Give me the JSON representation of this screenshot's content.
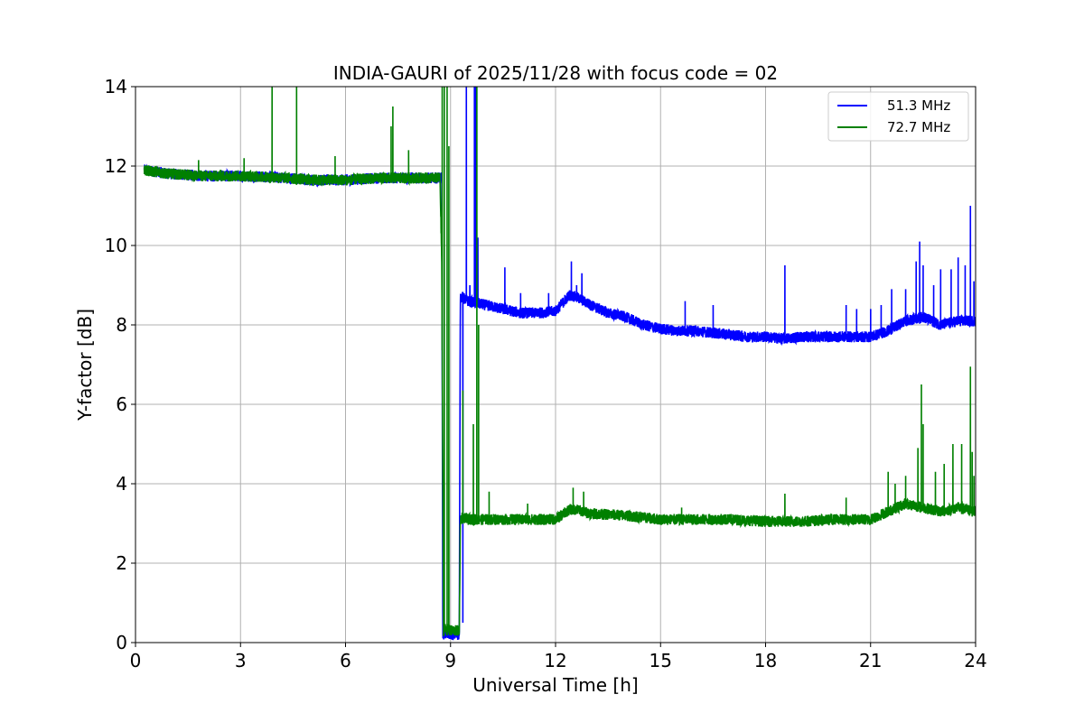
{
  "chart_data": {
    "type": "line",
    "title": "INDIA-GAURI of 2025/11/28 with focus code = 02",
    "xlabel": "Universal Time [h]",
    "ylabel": "Y-factor [dB]",
    "xlim": [
      0,
      24
    ],
    "ylim": [
      0,
      14
    ],
    "xticks": [
      0,
      3,
      6,
      9,
      12,
      15,
      18,
      21,
      24
    ],
    "xtick_labels": [
      "0",
      "3",
      "6",
      "9",
      "12",
      "15",
      "18",
      "21",
      "24"
    ],
    "yticks": [
      0,
      2,
      4,
      6,
      8,
      10,
      12,
      14
    ],
    "ytick_labels": [
      "0",
      "2",
      "4",
      "6",
      "8",
      "10",
      "12",
      "14"
    ],
    "grid": true,
    "legend_position": "top-right",
    "series": [
      {
        "name": "51.3 MHz",
        "color": "#0000ff",
        "noise": 0.14,
        "x": [
          0.25,
          1.0,
          2.0,
          3.0,
          4.0,
          5.0,
          6.0,
          7.0,
          8.0,
          8.75,
          8.78,
          8.85,
          9.0,
          9.25,
          9.28,
          9.32,
          9.5,
          10.0,
          10.5,
          11.0,
          11.5,
          12.0,
          12.4,
          12.6,
          13.0,
          13.5,
          14.0,
          14.5,
          15.0,
          15.5,
          16.0,
          16.5,
          17.0,
          17.5,
          18.0,
          18.5,
          19.0,
          19.5,
          20.0,
          20.5,
          21.0,
          21.5,
          22.0,
          22.5,
          23.0,
          23.5,
          24.0
        ],
        "y": [
          11.9,
          11.8,
          11.75,
          11.75,
          11.72,
          11.65,
          11.65,
          11.7,
          11.7,
          11.7,
          0.2,
          0.25,
          0.2,
          0.2,
          8.7,
          8.7,
          8.6,
          8.5,
          8.4,
          8.3,
          8.3,
          8.35,
          8.75,
          8.7,
          8.5,
          8.3,
          8.2,
          8.0,
          7.9,
          7.85,
          7.85,
          7.8,
          7.75,
          7.7,
          7.7,
          7.65,
          7.7,
          7.7,
          7.7,
          7.7,
          7.7,
          7.85,
          8.1,
          8.2,
          8.0,
          8.1,
          8.1
        ],
        "spikes": [
          [
            9.35,
            0.5
          ],
          [
            9.45,
            14.0
          ],
          [
            9.55,
            9.0
          ],
          [
            9.68,
            14.0
          ],
          [
            9.72,
            14.0
          ],
          [
            9.78,
            10.2
          ],
          [
            10.55,
            9.45
          ],
          [
            11.0,
            8.8
          ],
          [
            11.8,
            8.8
          ],
          [
            12.45,
            9.6
          ],
          [
            12.6,
            9.0
          ],
          [
            12.75,
            9.3
          ],
          [
            15.7,
            8.6
          ],
          [
            16.5,
            8.5
          ],
          [
            18.55,
            9.5
          ],
          [
            20.3,
            8.5
          ],
          [
            20.6,
            8.4
          ],
          [
            21.0,
            8.4
          ],
          [
            21.3,
            8.5
          ],
          [
            21.6,
            8.9
          ],
          [
            22.0,
            8.9
          ],
          [
            22.3,
            9.6
          ],
          [
            22.4,
            10.1
          ],
          [
            22.5,
            9.5
          ],
          [
            22.8,
            9.0
          ],
          [
            23.0,
            9.4
          ],
          [
            23.3,
            9.4
          ],
          [
            23.5,
            9.7
          ],
          [
            23.7,
            9.5
          ],
          [
            23.85,
            11.0
          ],
          [
            23.95,
            9.1
          ]
        ]
      },
      {
        "name": "72.7 MHz",
        "color": "#008000",
        "noise": 0.14,
        "x": [
          0.25,
          1.0,
          2.0,
          3.0,
          4.0,
          5.0,
          6.0,
          7.0,
          8.0,
          8.7,
          8.75,
          8.8,
          8.85,
          9.0,
          9.25,
          9.28,
          9.32,
          9.5,
          10.0,
          11.0,
          12.0,
          12.4,
          12.6,
          13.0,
          14.0,
          15.0,
          16.0,
          17.0,
          18.0,
          19.0,
          20.0,
          21.0,
          21.5,
          22.0,
          22.5,
          23.0,
          23.5,
          24.0
        ],
        "y": [
          11.9,
          11.8,
          11.75,
          11.75,
          11.72,
          11.65,
          11.65,
          11.7,
          11.7,
          11.7,
          9.6,
          0.3,
          0.35,
          0.3,
          0.3,
          3.1,
          3.15,
          3.1,
          3.1,
          3.1,
          3.1,
          3.35,
          3.35,
          3.25,
          3.2,
          3.1,
          3.1,
          3.1,
          3.05,
          3.05,
          3.1,
          3.1,
          3.3,
          3.5,
          3.4,
          3.3,
          3.4,
          3.3
        ],
        "spikes": [
          [
            1.8,
            12.15
          ],
          [
            3.1,
            12.2
          ],
          [
            3.9,
            14.0
          ],
          [
            4.6,
            14.0
          ],
          [
            5.7,
            12.25
          ],
          [
            7.3,
            13.0
          ],
          [
            7.35,
            13.5
          ],
          [
            7.8,
            12.4
          ],
          [
            8.76,
            14.0
          ],
          [
            8.82,
            14.0
          ],
          [
            8.9,
            14.0
          ],
          [
            8.95,
            12.5
          ],
          [
            9.35,
            6.35
          ],
          [
            9.65,
            5.5
          ],
          [
            9.75,
            14.0
          ],
          [
            9.8,
            8.0
          ],
          [
            10.1,
            3.8
          ],
          [
            11.2,
            3.5
          ],
          [
            12.5,
            3.9
          ],
          [
            12.8,
            3.8
          ],
          [
            15.6,
            3.4
          ],
          [
            18.55,
            3.75
          ],
          [
            20.3,
            3.65
          ],
          [
            21.5,
            4.3
          ],
          [
            21.7,
            4.0
          ],
          [
            22.0,
            4.2
          ],
          [
            22.35,
            4.9
          ],
          [
            22.45,
            6.5
          ],
          [
            22.5,
            5.5
          ],
          [
            22.85,
            4.3
          ],
          [
            23.1,
            4.5
          ],
          [
            23.35,
            5.0
          ],
          [
            23.6,
            5.0
          ],
          [
            23.85,
            6.95
          ],
          [
            23.9,
            4.8
          ],
          [
            23.95,
            4.2
          ]
        ]
      }
    ]
  }
}
